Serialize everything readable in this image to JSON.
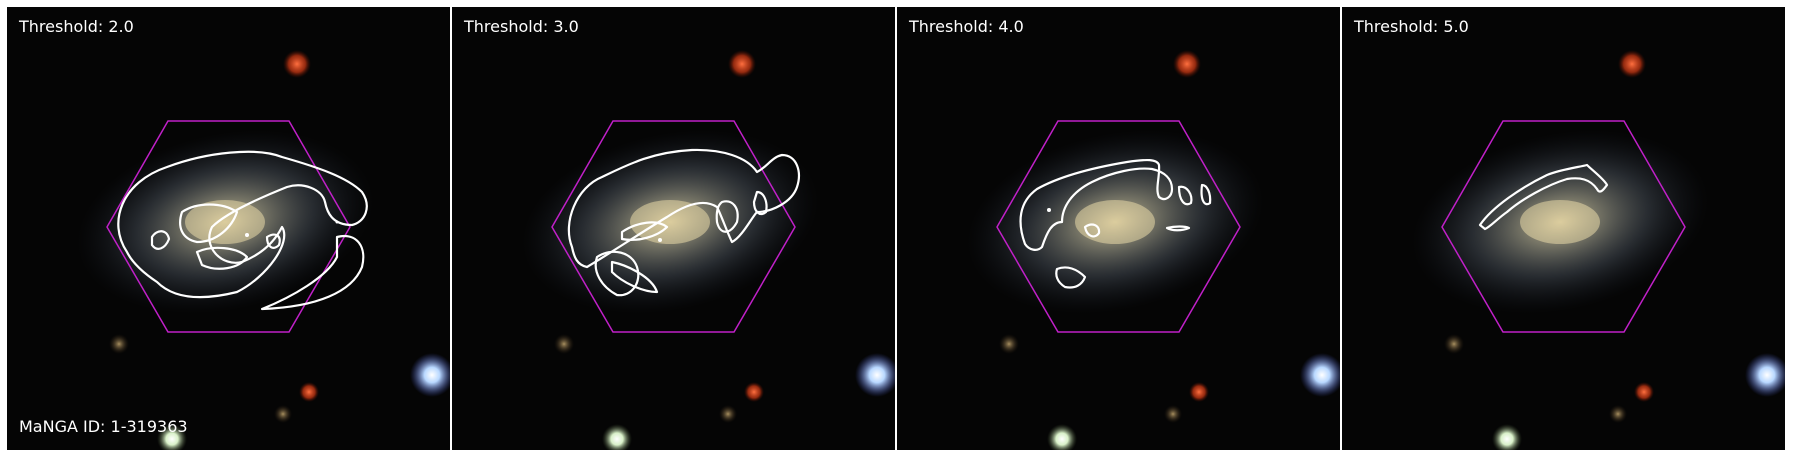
{
  "manga_id_label": "MaNGA ID: 1-319363",
  "panels": [
    {
      "threshold_label": "Threshold: 2.0"
    },
    {
      "threshold_label": "Threshold: 3.0"
    },
    {
      "threshold_label": "Threshold: 4.0"
    },
    {
      "threshold_label": "Threshold: 5.0"
    }
  ],
  "colors": {
    "hexagon": "#c020c8",
    "contour": "#ffffff",
    "background": "#050505"
  }
}
